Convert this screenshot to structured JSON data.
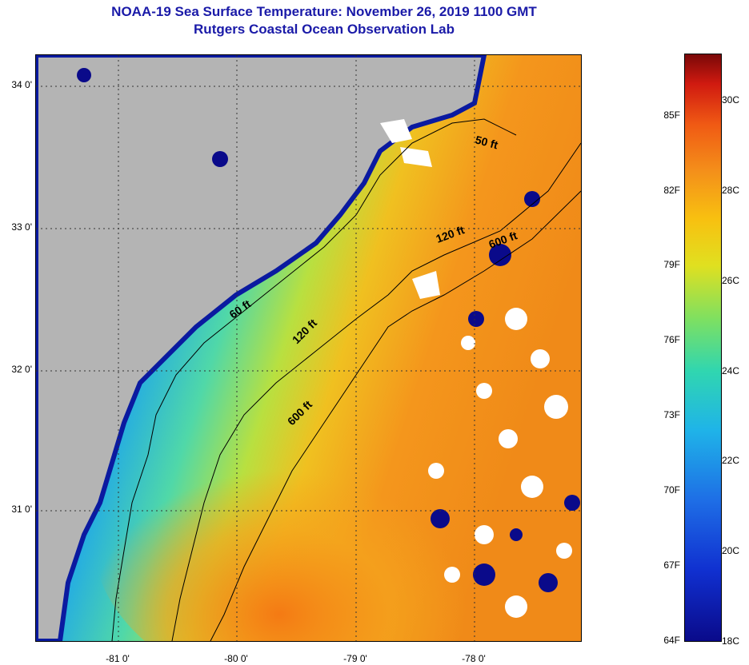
{
  "title": {
    "line1": "NOAA-19 Sea Surface Temperature:  November 26, 2019 1100 GMT",
    "line2": "Rutgers Coastal Ocean Observation Lab"
  },
  "map": {
    "lat_labels": [
      "34 0'",
      "33 0'",
      "32 0'",
      "31 0'"
    ],
    "lon_labels": [
      "-81 0'",
      "-80 0'",
      "-79 0'",
      "-78 0'"
    ],
    "contour_labels": [
      "50 ft",
      "120 ft",
      "600 ft",
      "60 ft",
      "120 ft",
      "600 ft"
    ]
  },
  "colorbar": {
    "fahrenheit": [
      "85F",
      "82F",
      "79F",
      "76F",
      "73F",
      "70F",
      "67F",
      "64F"
    ],
    "celsius": [
      "30C",
      "28C",
      "26C",
      "24C",
      "22C",
      "20C",
      "18C"
    ]
  },
  "colors": {
    "land": "#b4b4b4",
    "cold": "#0a0a8a",
    "warm": "#f4901a",
    "title": "#1a1aa8"
  }
}
